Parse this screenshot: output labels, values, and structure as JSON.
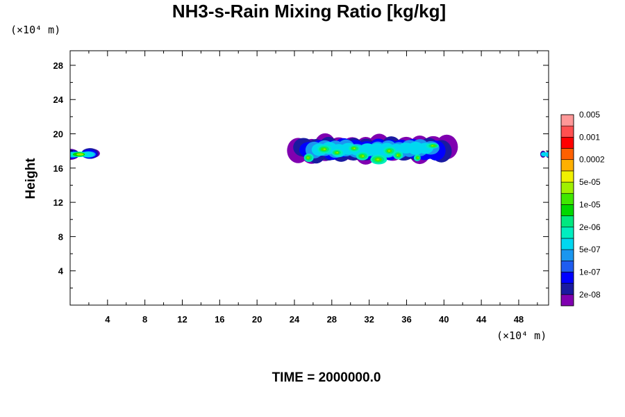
{
  "chart_data": {
    "type": "heatmap",
    "title": "NH3-s-Rain Mixing Ratio [kg/kg]",
    "x_unit": "(×10⁴ m)",
    "y_unit": "(×10⁴ m)",
    "ylabel": "Height",
    "xlabel": "",
    "xlim": [
      0,
      51.2
    ],
    "ylim": [
      0,
      29.7
    ],
    "x_ticks": [
      "4",
      "8",
      "12",
      "16",
      "20",
      "24",
      "28",
      "32",
      "36",
      "40",
      "44",
      "48"
    ],
    "y_ticks": [
      "4",
      "8",
      "12",
      "16",
      "20",
      "24",
      "28"
    ],
    "grid": false,
    "legend_position": "right",
    "colorbar": {
      "colors": [
        "#8000b0",
        "#1a1aa0",
        "#0000ff",
        "#1e5cf0",
        "#1a96f0",
        "#00d8f0",
        "#00eec0",
        "#00e880",
        "#00d800",
        "#40e800",
        "#a0f000",
        "#f0f000",
        "#ffb000",
        "#ff6000",
        "#ff0000",
        "#ff5050",
        "#ff9898"
      ],
      "labels": [
        "2e-08",
        "1e-07",
        "5e-07",
        "2e-06",
        "1e-05",
        "5e-05",
        "0.0002",
        "0.001",
        "0.005"
      ]
    },
    "regions": [
      {
        "x_range": [
          0,
          2.2
        ],
        "y_range": [
          16.9,
          18.3
        ],
        "max_level": "5e-05"
      },
      {
        "x_range": [
          24.4,
          40.3
        ],
        "y_range": [
          16.6,
          19.8
        ],
        "max_level": "5e-05"
      },
      {
        "x_range": [
          50.6,
          51.2
        ],
        "y_range": [
          17.2,
          18.0
        ],
        "max_level": "5e-07"
      }
    ]
  },
  "footer": {
    "time_label": "TIME = 2000000.0"
  }
}
